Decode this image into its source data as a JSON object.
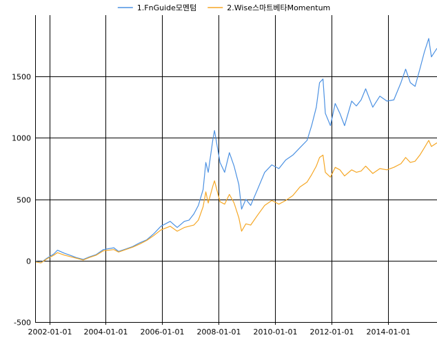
{
  "chart_data": {
    "type": "line",
    "title": "",
    "xlabel": "",
    "ylabel": "",
    "legend_position": "top",
    "grid": true,
    "xlim": [
      "2001-07-01",
      "2015-09-30"
    ],
    "ylim": [
      -500,
      2000
    ],
    "x_ticks": [
      "2002-01-01",
      "2004-01-01",
      "2006-01-01",
      "2008-01-01",
      "2010-01-01",
      "2012-01-01",
      "2014-01-01"
    ],
    "y_ticks": [
      -500,
      0,
      500,
      1000,
      1500
    ],
    "series": [
      {
        "name": "1.FnGuide모멘텀",
        "color": "#4a90e2",
        "points": [
          [
            "2001-07-01",
            -5
          ],
          [
            "2001-09-15",
            -15
          ],
          [
            "2001-12-01",
            20
          ],
          [
            "2002-03-01",
            55
          ],
          [
            "2002-04-15",
            85
          ],
          [
            "2002-07-15",
            60
          ],
          [
            "2002-10-15",
            40
          ],
          [
            "2002-12-15",
            25
          ],
          [
            "2003-03-15",
            10
          ],
          [
            "2003-06-01",
            30
          ],
          [
            "2003-09-01",
            50
          ],
          [
            "2003-12-01",
            90
          ],
          [
            "2004-04-15",
            105
          ],
          [
            "2004-06-15",
            75
          ],
          [
            "2004-09-15",
            95
          ],
          [
            "2004-12-15",
            115
          ],
          [
            "2005-03-15",
            145
          ],
          [
            "2005-06-15",
            170
          ],
          [
            "2005-09-15",
            220
          ],
          [
            "2005-12-15",
            280
          ],
          [
            "2006-04-15",
            320
          ],
          [
            "2006-07-15",
            270
          ],
          [
            "2006-10-15",
            320
          ],
          [
            "2006-12-15",
            330
          ],
          [
            "2007-02-15",
            380
          ],
          [
            "2007-04-15",
            450
          ],
          [
            "2007-06-15",
            580
          ],
          [
            "2007-07-20",
            800
          ],
          [
            "2007-08-20",
            720
          ],
          [
            "2007-10-20",
            990
          ],
          [
            "2007-11-10",
            1060
          ],
          [
            "2008-01-20",
            800
          ],
          [
            "2008-03-20",
            720
          ],
          [
            "2008-05-20",
            880
          ],
          [
            "2008-07-20",
            770
          ],
          [
            "2008-09-20",
            620
          ],
          [
            "2008-10-25",
            420
          ],
          [
            "2008-12-20",
            500
          ],
          [
            "2009-02-20",
            450
          ],
          [
            "2009-05-20",
            580
          ],
          [
            "2009-08-20",
            720
          ],
          [
            "2009-11-20",
            780
          ],
          [
            "2010-02-20",
            750
          ],
          [
            "2010-05-20",
            820
          ],
          [
            "2010-08-20",
            860
          ],
          [
            "2010-11-20",
            920
          ],
          [
            "2011-02-20",
            980
          ],
          [
            "2011-04-20",
            1100
          ],
          [
            "2011-06-20",
            1250
          ],
          [
            "2011-08-01",
            1450
          ],
          [
            "2011-09-15",
            1480
          ],
          [
            "2011-10-15",
            1200
          ],
          [
            "2011-12-20",
            1100
          ],
          [
            "2012-02-20",
            1280
          ],
          [
            "2012-04-20",
            1200
          ],
          [
            "2012-06-20",
            1100
          ],
          [
            "2012-09-20",
            1300
          ],
          [
            "2012-11-20",
            1260
          ],
          [
            "2013-01-20",
            1310
          ],
          [
            "2013-03-20",
            1400
          ],
          [
            "2013-06-20",
            1250
          ],
          [
            "2013-09-20",
            1340
          ],
          [
            "2013-12-20",
            1300
          ],
          [
            "2014-03-20",
            1310
          ],
          [
            "2014-06-20",
            1450
          ],
          [
            "2014-08-20",
            1560
          ],
          [
            "2014-10-20",
            1450
          ],
          [
            "2014-12-20",
            1420
          ],
          [
            "2015-02-20",
            1560
          ],
          [
            "2015-04-20",
            1700
          ],
          [
            "2015-06-15",
            1810
          ],
          [
            "2015-07-20",
            1660
          ],
          [
            "2015-09-30",
            1730
          ]
        ]
      },
      {
        "name": "2.Wise스마트베타Momentum",
        "color": "#f5a623",
        "points": [
          [
            "2001-07-01",
            -10
          ],
          [
            "2001-09-15",
            -18
          ],
          [
            "2001-12-01",
            15
          ],
          [
            "2002-03-01",
            45
          ],
          [
            "2002-04-15",
            65
          ],
          [
            "2002-07-15",
            45
          ],
          [
            "2002-10-15",
            30
          ],
          [
            "2002-12-15",
            20
          ],
          [
            "2003-03-15",
            5
          ],
          [
            "2003-06-01",
            25
          ],
          [
            "2003-09-01",
            45
          ],
          [
            "2003-12-01",
            80
          ],
          [
            "2004-04-15",
            90
          ],
          [
            "2004-06-15",
            70
          ],
          [
            "2004-09-15",
            90
          ],
          [
            "2004-12-15",
            110
          ],
          [
            "2005-03-15",
            135
          ],
          [
            "2005-06-15",
            165
          ],
          [
            "2005-09-15",
            205
          ],
          [
            "2005-12-15",
            250
          ],
          [
            "2006-04-15",
            280
          ],
          [
            "2006-07-15",
            240
          ],
          [
            "2006-10-15",
            270
          ],
          [
            "2006-12-15",
            280
          ],
          [
            "2007-02-15",
            290
          ],
          [
            "2007-04-15",
            330
          ],
          [
            "2007-06-15",
            440
          ],
          [
            "2007-07-20",
            560
          ],
          [
            "2007-08-20",
            470
          ],
          [
            "2007-10-20",
            610
          ],
          [
            "2007-11-10",
            650
          ],
          [
            "2008-01-20",
            480
          ],
          [
            "2008-03-20",
            460
          ],
          [
            "2008-05-20",
            540
          ],
          [
            "2008-07-20",
            470
          ],
          [
            "2008-09-20",
            350
          ],
          [
            "2008-10-25",
            240
          ],
          [
            "2008-12-20",
            300
          ],
          [
            "2009-02-20",
            290
          ],
          [
            "2009-05-20",
            370
          ],
          [
            "2009-08-20",
            450
          ],
          [
            "2009-11-20",
            490
          ],
          [
            "2010-02-20",
            460
          ],
          [
            "2010-05-20",
            490
          ],
          [
            "2010-08-20",
            530
          ],
          [
            "2010-11-20",
            600
          ],
          [
            "2011-02-20",
            640
          ],
          [
            "2011-04-20",
            700
          ],
          [
            "2011-06-20",
            770
          ],
          [
            "2011-08-01",
            840
          ],
          [
            "2011-09-15",
            860
          ],
          [
            "2011-10-15",
            720
          ],
          [
            "2011-12-20",
            680
          ],
          [
            "2012-02-20",
            760
          ],
          [
            "2012-04-20",
            740
          ],
          [
            "2012-06-20",
            690
          ],
          [
            "2012-09-20",
            740
          ],
          [
            "2012-11-20",
            720
          ],
          [
            "2013-01-20",
            730
          ],
          [
            "2013-03-20",
            770
          ],
          [
            "2013-06-20",
            710
          ],
          [
            "2013-09-20",
            750
          ],
          [
            "2013-12-20",
            740
          ],
          [
            "2014-03-20",
            760
          ],
          [
            "2014-06-20",
            790
          ],
          [
            "2014-08-20",
            840
          ],
          [
            "2014-10-20",
            800
          ],
          [
            "2014-12-20",
            810
          ],
          [
            "2015-02-20",
            860
          ],
          [
            "2015-04-20",
            920
          ],
          [
            "2015-06-15",
            980
          ],
          [
            "2015-07-20",
            930
          ],
          [
            "2015-09-30",
            960
          ]
        ]
      }
    ]
  }
}
